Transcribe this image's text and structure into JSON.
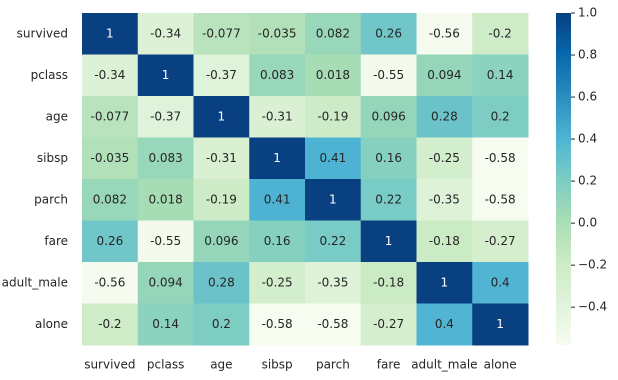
{
  "chart_data": {
    "type": "heatmap",
    "x_categories": [
      "survived",
      "pclass",
      "age",
      "sibsp",
      "parch",
      "fare",
      "adult_male",
      "alone"
    ],
    "y_categories": [
      "survived",
      "pclass",
      "age",
      "sibsp",
      "parch",
      "fare",
      "adult_male",
      "alone"
    ],
    "values": [
      [
        1,
        -0.34,
        -0.077,
        -0.035,
        0.082,
        0.26,
        -0.56,
        -0.2
      ],
      [
        -0.34,
        1,
        -0.37,
        0.083,
        0.018,
        -0.55,
        0.094,
        0.14
      ],
      [
        -0.077,
        -0.37,
        1,
        -0.31,
        -0.19,
        0.096,
        0.28,
        0.2
      ],
      [
        -0.035,
        0.083,
        -0.31,
        1,
        0.41,
        0.16,
        -0.25,
        -0.58
      ],
      [
        0.082,
        0.018,
        -0.19,
        0.41,
        1,
        0.22,
        -0.35,
        -0.58
      ],
      [
        0.26,
        -0.55,
        0.096,
        0.16,
        0.22,
        1,
        -0.18,
        -0.27
      ],
      [
        -0.56,
        0.094,
        0.28,
        -0.25,
        -0.35,
        -0.18,
        1,
        0.4
      ],
      [
        -0.2,
        0.14,
        0.2,
        -0.58,
        -0.58,
        -0.27,
        0.4,
        1
      ]
    ],
    "colorscale": [
      "#f7fcf0",
      "#e0f3db",
      "#ccebc5",
      "#a8ddb5",
      "#7bccc4",
      "#4eb3d3",
      "#2b8cbe",
      "#0868ac",
      "#084081"
    ],
    "clim": [
      -0.58,
      1
    ],
    "cticks": [
      {
        "value": 1.0,
        "label": "1.0"
      },
      {
        "value": 0.8,
        "label": "0.8"
      },
      {
        "value": 0.6,
        "label": "0.6"
      },
      {
        "value": 0.4,
        "label": "0.4"
      },
      {
        "value": 0.2,
        "label": "0.2"
      },
      {
        "value": 0.0,
        "label": "0.0"
      },
      {
        "value": -0.2,
        "label": "−0.2"
      },
      {
        "value": -0.4,
        "label": "−0.4"
      }
    ]
  }
}
